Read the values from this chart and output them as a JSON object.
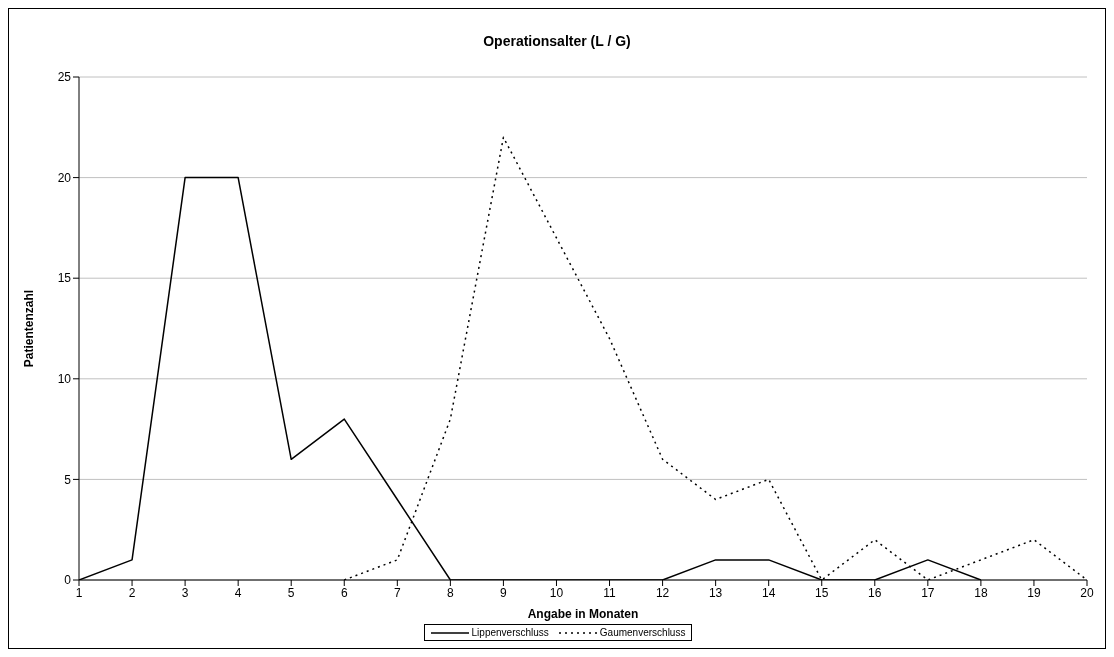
{
  "chart_data": {
    "type": "line",
    "title": "Operationsalter (L / G)",
    "xlabel": "Angabe in Monaten",
    "ylabel": "Patientenzahl",
    "x": [
      1,
      2,
      3,
      4,
      5,
      6,
      7,
      8,
      9,
      10,
      11,
      12,
      13,
      14,
      15,
      16,
      17,
      18,
      19,
      20
    ],
    "series": [
      {
        "name": "Lippenverschluss",
        "color": "#000000",
        "line_style": "solid",
        "values": [
          0,
          1,
          20,
          20,
          6,
          8,
          4,
          0,
          0,
          0,
          0,
          0,
          1,
          1,
          0,
          0,
          1,
          0,
          null,
          null
        ]
      },
      {
        "name": "Gaumenverschluss",
        "color": "#000000",
        "line_style": "dotted",
        "values": [
          null,
          null,
          null,
          null,
          null,
          0,
          1,
          8,
          22,
          17,
          12,
          6,
          4,
          5,
          0,
          2,
          0,
          1,
          2,
          0
        ]
      }
    ],
    "xlim": [
      1,
      20
    ],
    "xticks": [
      1,
      2,
      3,
      4,
      5,
      6,
      7,
      8,
      9,
      10,
      11,
      12,
      13,
      14,
      15,
      16,
      17,
      18,
      19,
      20
    ],
    "ylim": [
      0,
      25
    ],
    "yticks": [
      0,
      5,
      10,
      15,
      20,
      25
    ],
    "grid": "y",
    "legend": "bottom",
    "marker": "none"
  }
}
